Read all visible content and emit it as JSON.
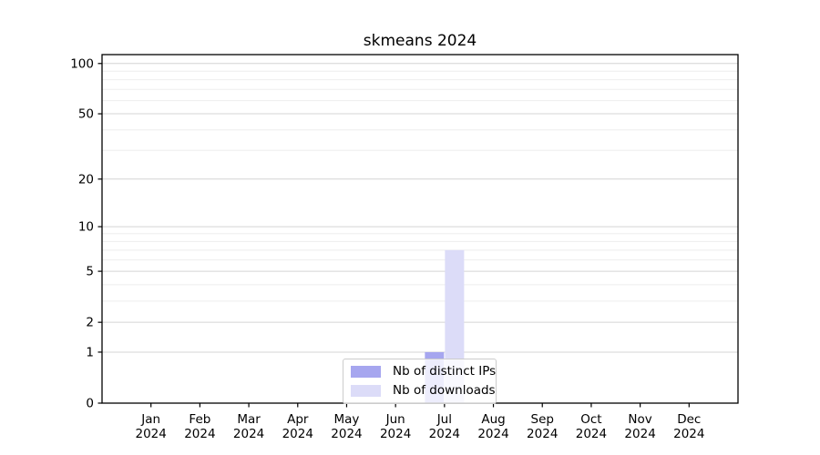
{
  "chart_data": {
    "type": "bar",
    "title": "skmeans 2024",
    "year": "2024",
    "categories": [
      "Jan",
      "Feb",
      "Mar",
      "Apr",
      "May",
      "Jun",
      "Jul",
      "Aug",
      "Sep",
      "Oct",
      "Nov",
      "Dec"
    ],
    "series": [
      {
        "name": "Nb of distinct IPs",
        "color": "#a6a6ef",
        "values": [
          0,
          0,
          0,
          0,
          0,
          0,
          1,
          0,
          0,
          0,
          0,
          0
        ]
      },
      {
        "name": "Nb of downloads",
        "color": "#dcdcf8",
        "values": [
          0,
          0,
          0,
          0,
          0,
          0,
          7,
          0,
          0,
          0,
          0,
          0
        ]
      }
    ],
    "xlabel": "",
    "ylabel": "",
    "yscale": "log1p",
    "ylim": [
      0,
      113
    ],
    "yticks": [
      0,
      1,
      2,
      5,
      10,
      20,
      50,
      100
    ],
    "minor_yticks": [
      3,
      4,
      6,
      7,
      8,
      9,
      30,
      40,
      60,
      70,
      80,
      90
    ],
    "grid": "horizontal",
    "legend_position": "lower center",
    "colors": {
      "axis": "#000000",
      "grid_major": "#d4d4d4",
      "grid_minor": "#eeeeee",
      "background": "#ffffff"
    }
  }
}
